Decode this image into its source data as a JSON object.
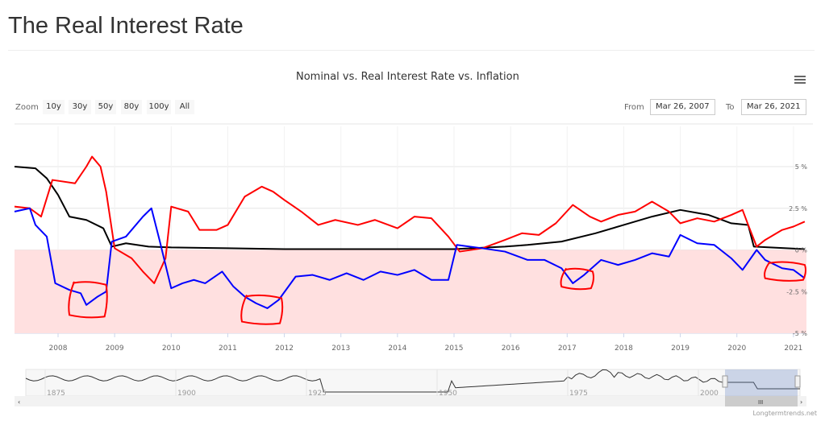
{
  "page_title": "The Real Interest Rate",
  "toolbar": {
    "zoom_label": "Zoom",
    "zoom_buttons": [
      "10y",
      "30y",
      "50y",
      "80y",
      "100y",
      "All"
    ],
    "from_label": "From",
    "from_value": "Mar 26, 2007",
    "to_label": "To",
    "to_value": "Mar 26, 2021",
    "menu_icon": "hamburger-icon"
  },
  "credit": "Longtermtrends.net",
  "navigator": {
    "tick_labels": [
      "1875",
      "1900",
      "1925",
      "1950",
      "1975",
      "2000"
    ]
  },
  "colors": {
    "nominal": "#000000",
    "inflation": "#ff0000",
    "real": "#0000ff",
    "negative_band": "#ffe0e0",
    "annotation": "#ff0000"
  },
  "chart_data": {
    "type": "line",
    "title": "Nominal vs. Real Interest Rate vs. Inflation",
    "xlabel": "",
    "ylabel": "",
    "xlim": [
      2007.23,
      2021.23
    ],
    "ylim": [
      -5,
      5
    ],
    "x_ticks": [
      "2008",
      "2009",
      "2010",
      "2011",
      "2012",
      "2013",
      "2014",
      "2015",
      "2016",
      "2017",
      "2018",
      "2019",
      "2020",
      "2021"
    ],
    "y_ticks": [
      "5 %",
      "2.5 %",
      "0 %",
      "-2.5 %",
      "-5 %"
    ],
    "y_tick_values": [
      5,
      2.5,
      0,
      -2.5,
      -5
    ],
    "series": [
      {
        "name": "Nominal",
        "color": "#000000",
        "points": [
          [
            2007.23,
            5.0
          ],
          [
            2007.6,
            4.9
          ],
          [
            2007.8,
            4.3
          ],
          [
            2008.0,
            3.3
          ],
          [
            2008.2,
            2.0
          ],
          [
            2008.5,
            1.8
          ],
          [
            2008.8,
            1.3
          ],
          [
            2008.95,
            0.2
          ],
          [
            2009.2,
            0.4
          ],
          [
            2009.6,
            0.2
          ],
          [
            2010,
            0.15
          ],
          [
            2011,
            0.1
          ],
          [
            2012,
            0.05
          ],
          [
            2013,
            0.05
          ],
          [
            2015,
            0.05
          ],
          [
            2015.9,
            0.2
          ],
          [
            2016.3,
            0.3
          ],
          [
            2016.9,
            0.5
          ],
          [
            2017.5,
            1.0
          ],
          [
            2018,
            1.5
          ],
          [
            2018.5,
            2.0
          ],
          [
            2019,
            2.4
          ],
          [
            2019.5,
            2.1
          ],
          [
            2019.9,
            1.6
          ],
          [
            2020.2,
            1.5
          ],
          [
            2020.3,
            0.2
          ],
          [
            2021.2,
            0.05
          ]
        ]
      },
      {
        "name": "Inflation",
        "color": "#ff0000",
        "points": [
          [
            2007.23,
            2.6
          ],
          [
            2007.5,
            2.5
          ],
          [
            2007.7,
            2.0
          ],
          [
            2007.9,
            4.2
          ],
          [
            2008.3,
            4.0
          ],
          [
            2008.5,
            5.0
          ],
          [
            2008.6,
            5.6
          ],
          [
            2008.75,
            5.0
          ],
          [
            2008.85,
            3.5
          ],
          [
            2009.0,
            0.1
          ],
          [
            2009.3,
            -0.5
          ],
          [
            2009.5,
            -1.3
          ],
          [
            2009.7,
            -2.0
          ],
          [
            2009.9,
            -0.5
          ],
          [
            2010.0,
            2.6
          ],
          [
            2010.3,
            2.3
          ],
          [
            2010.5,
            1.2
          ],
          [
            2010.8,
            1.2
          ],
          [
            2011.0,
            1.5
          ],
          [
            2011.3,
            3.2
          ],
          [
            2011.6,
            3.8
          ],
          [
            2011.8,
            3.5
          ],
          [
            2012.0,
            3.0
          ],
          [
            2012.3,
            2.3
          ],
          [
            2012.6,
            1.5
          ],
          [
            2012.9,
            1.8
          ],
          [
            2013.3,
            1.5
          ],
          [
            2013.6,
            1.8
          ],
          [
            2014.0,
            1.3
          ],
          [
            2014.3,
            2.0
          ],
          [
            2014.6,
            1.9
          ],
          [
            2014.9,
            0.8
          ],
          [
            2015.1,
            -0.1
          ],
          [
            2015.5,
            0.1
          ],
          [
            2015.9,
            0.6
          ],
          [
            2016.2,
            1.0
          ],
          [
            2016.5,
            0.9
          ],
          [
            2016.8,
            1.6
          ],
          [
            2017.1,
            2.7
          ],
          [
            2017.4,
            2.0
          ],
          [
            2017.6,
            1.7
          ],
          [
            2017.9,
            2.1
          ],
          [
            2018.2,
            2.3
          ],
          [
            2018.5,
            2.9
          ],
          [
            2018.8,
            2.3
          ],
          [
            2019.0,
            1.6
          ],
          [
            2019.3,
            1.9
          ],
          [
            2019.6,
            1.7
          ],
          [
            2019.9,
            2.1
          ],
          [
            2020.1,
            2.4
          ],
          [
            2020.2,
            1.5
          ],
          [
            2020.35,
            0.2
          ],
          [
            2020.5,
            0.6
          ],
          [
            2020.8,
            1.2
          ],
          [
            2021.0,
            1.4
          ],
          [
            2021.2,
            1.7
          ]
        ]
      },
      {
        "name": "Real",
        "color": "#0000ff",
        "points": [
          [
            2007.23,
            2.3
          ],
          [
            2007.5,
            2.5
          ],
          [
            2007.6,
            1.5
          ],
          [
            2007.8,
            0.8
          ],
          [
            2007.95,
            -2.0
          ],
          [
            2008.2,
            -2.4
          ],
          [
            2008.4,
            -2.6
          ],
          [
            2008.5,
            -3.3
          ],
          [
            2008.7,
            -2.8
          ],
          [
            2008.85,
            -2.5
          ],
          [
            2008.95,
            0.5
          ],
          [
            2009.2,
            0.8
          ],
          [
            2009.5,
            2.0
          ],
          [
            2009.65,
            2.5
          ],
          [
            2009.8,
            0.5
          ],
          [
            2010.0,
            -2.3
          ],
          [
            2010.2,
            -2.0
          ],
          [
            2010.4,
            -1.8
          ],
          [
            2010.6,
            -2.0
          ],
          [
            2010.9,
            -1.3
          ],
          [
            2011.1,
            -2.2
          ],
          [
            2011.3,
            -2.8
          ],
          [
            2011.5,
            -3.2
          ],
          [
            2011.7,
            -3.5
          ],
          [
            2011.9,
            -3.0
          ],
          [
            2012.2,
            -1.6
          ],
          [
            2012.5,
            -1.5
          ],
          [
            2012.8,
            -1.8
          ],
          [
            2013.1,
            -1.4
          ],
          [
            2013.4,
            -1.8
          ],
          [
            2013.7,
            -1.3
          ],
          [
            2014.0,
            -1.5
          ],
          [
            2014.3,
            -1.2
          ],
          [
            2014.6,
            -1.8
          ],
          [
            2014.9,
            -1.8
          ],
          [
            2015.05,
            0.3
          ],
          [
            2015.5,
            0.1
          ],
          [
            2015.9,
            -0.1
          ],
          [
            2016.3,
            -0.6
          ],
          [
            2016.6,
            -0.6
          ],
          [
            2016.9,
            -1.1
          ],
          [
            2017.1,
            -2.0
          ],
          [
            2017.3,
            -1.5
          ],
          [
            2017.6,
            -0.6
          ],
          [
            2017.9,
            -0.9
          ],
          [
            2018.2,
            -0.6
          ],
          [
            2018.5,
            -0.2
          ],
          [
            2018.8,
            -0.4
          ],
          [
            2019.0,
            0.9
          ],
          [
            2019.3,
            0.4
          ],
          [
            2019.6,
            0.3
          ],
          [
            2019.9,
            -0.5
          ],
          [
            2020.1,
            -1.2
          ],
          [
            2020.35,
            0.0
          ],
          [
            2020.5,
            -0.6
          ],
          [
            2020.8,
            -1.1
          ],
          [
            2021.0,
            -1.2
          ],
          [
            2021.2,
            -1.7
          ]
        ]
      }
    ],
    "negative_band": [
      -5,
      0
    ],
    "annotations": [
      [
        2008.2,
        2008.85,
        -2.0,
        -4.0
      ],
      [
        2011.25,
        2011.95,
        -2.8,
        -4.4
      ],
      [
        2016.9,
        2017.45,
        -1.2,
        -2.3
      ],
      [
        2020.5,
        2021.2,
        -0.8,
        -1.8
      ]
    ]
  }
}
